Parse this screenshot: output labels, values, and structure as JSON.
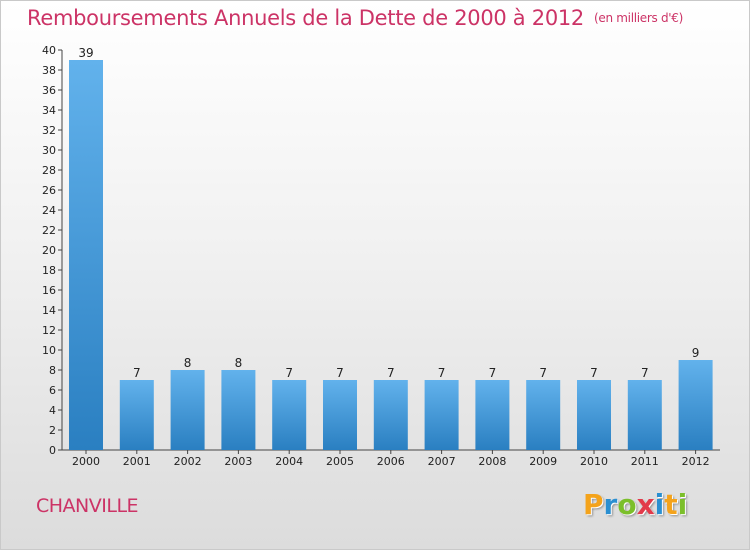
{
  "title": "Remboursements Annuels de la Dette de 2000 à 2012",
  "subtitle": "(en milliers d'€)",
  "commune": "CHANVILLE",
  "logo": {
    "letters": [
      "P",
      "r",
      "o",
      "x",
      "i",
      "t",
      "i"
    ],
    "colors": [
      "#f4a31b",
      "#2a8fd1",
      "#7bbf2a",
      "#e23a4a",
      "#2a8fd1",
      "#f4a31b",
      "#7bbf2a"
    ]
  },
  "colors": {
    "title": "#cc3366",
    "bar_top": "#62b2ec",
    "bar_bottom": "#2a7fc1"
  },
  "chart_data": {
    "type": "bar",
    "categories": [
      "2000",
      "2001",
      "2002",
      "2003",
      "2004",
      "2005",
      "2006",
      "2007",
      "2008",
      "2009",
      "2010",
      "2011",
      "2012"
    ],
    "values": [
      39,
      7,
      8,
      8,
      7,
      7,
      7,
      7,
      7,
      7,
      7,
      7,
      9
    ],
    "ylim": [
      0,
      40
    ],
    "ytick_step": 2,
    "xlabel": "",
    "ylabel": "",
    "grid": false,
    "legend": "none"
  }
}
